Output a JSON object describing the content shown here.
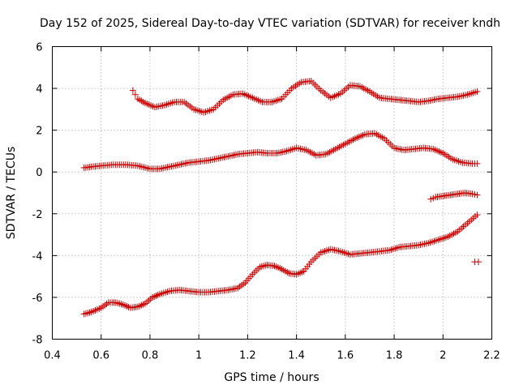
{
  "chart_data": {
    "type": "scatter",
    "title": "Day 152 of 2025, Sidereal Day-to-day VTEC variation (SDTVAR) for receiver kndh",
    "xlabel": "GPS time / hours",
    "ylabel": "SDTVAR / TECUs",
    "xlim": [
      0.4,
      2.2
    ],
    "ylim": [
      -8,
      6
    ],
    "xticks": [
      0.4,
      0.6,
      0.8,
      1.0,
      1.2,
      1.4,
      1.6,
      1.8,
      2.0,
      2.2
    ],
    "xtick_labels": [
      "0.4",
      "0.6",
      "0.8",
      "1",
      "1.2",
      "1.4",
      "1.6",
      "1.8",
      "2",
      "2.2"
    ],
    "yticks": [
      -8,
      -6,
      -4,
      -2,
      0,
      2,
      4,
      6
    ],
    "ytick_labels": [
      "-8",
      "-6",
      "-4",
      "-2",
      "0",
      "2",
      "4",
      "6"
    ],
    "grid": true,
    "marker": "+",
    "color": "#cc0000",
    "series": [
      {
        "name": "upper arc",
        "x": [
          0.73,
          0.75,
          0.78,
          0.82,
          0.86,
          0.9,
          0.94,
          0.98,
          1.02,
          1.06,
          1.1,
          1.14,
          1.18,
          1.22,
          1.26,
          1.3,
          1.34,
          1.38,
          1.42,
          1.46,
          1.5,
          1.54,
          1.58,
          1.62,
          1.66,
          1.7,
          1.74,
          1.78,
          1.82,
          1.86,
          1.9,
          1.94,
          1.98,
          2.02,
          2.06,
          2.1,
          2.14
        ],
        "y": [
          3.9,
          3.5,
          3.3,
          3.1,
          3.2,
          3.35,
          3.35,
          3.0,
          2.85,
          3.0,
          3.45,
          3.7,
          3.75,
          3.55,
          3.35,
          3.35,
          3.5,
          4.0,
          4.3,
          4.35,
          3.9,
          3.55,
          3.75,
          4.15,
          4.1,
          3.85,
          3.55,
          3.5,
          3.45,
          3.4,
          3.35,
          3.4,
          3.5,
          3.55,
          3.6,
          3.7,
          3.85
        ]
      },
      {
        "name": "middle arc",
        "x": [
          0.53,
          0.56,
          0.6,
          0.65,
          0.7,
          0.75,
          0.8,
          0.84,
          0.88,
          0.92,
          0.96,
          1.0,
          1.04,
          1.08,
          1.12,
          1.16,
          1.2,
          1.24,
          1.28,
          1.32,
          1.36,
          1.4,
          1.44,
          1.48,
          1.52,
          1.56,
          1.6,
          1.64,
          1.68,
          1.72,
          1.76,
          1.8,
          1.84,
          1.88,
          1.92,
          1.96,
          2.0,
          2.04,
          2.08,
          2.12,
          2.14
        ],
        "y": [
          0.2,
          0.25,
          0.3,
          0.35,
          0.35,
          0.3,
          0.15,
          0.15,
          0.25,
          0.35,
          0.45,
          0.5,
          0.55,
          0.65,
          0.75,
          0.85,
          0.9,
          0.95,
          0.9,
          0.9,
          1.0,
          1.15,
          1.05,
          0.8,
          0.85,
          1.1,
          1.35,
          1.6,
          1.8,
          1.85,
          1.6,
          1.15,
          1.05,
          1.1,
          1.15,
          1.1,
          0.9,
          0.6,
          0.45,
          0.4,
          0.4
        ]
      },
      {
        "name": "short segment",
        "x": [
          1.95,
          1.97,
          2.0,
          2.03,
          2.06,
          2.09,
          2.12,
          2.14
        ],
        "y": [
          -1.3,
          -1.2,
          -1.15,
          -1.1,
          -1.05,
          -1.0,
          -1.05,
          -1.1
        ]
      },
      {
        "name": "lower arc",
        "x": [
          0.53,
          0.56,
          0.6,
          0.63,
          0.66,
          0.69,
          0.72,
          0.75,
          0.78,
          0.81,
          0.84,
          0.88,
          0.92,
          0.96,
          1.0,
          1.04,
          1.08,
          1.12,
          1.16,
          1.19,
          1.22,
          1.25,
          1.28,
          1.31,
          1.34,
          1.37,
          1.4,
          1.43,
          1.46,
          1.5,
          1.54,
          1.58,
          1.62,
          1.66,
          1.7,
          1.74,
          1.78,
          1.82,
          1.86,
          1.9,
          1.94,
          1.98,
          2.02,
          2.06,
          2.1,
          2.14
        ],
        "y": [
          -6.8,
          -6.7,
          -6.5,
          -6.25,
          -6.25,
          -6.35,
          -6.5,
          -6.45,
          -6.3,
          -6.0,
          -5.85,
          -5.7,
          -5.65,
          -5.7,
          -5.75,
          -5.75,
          -5.7,
          -5.65,
          -5.55,
          -5.3,
          -4.9,
          -4.55,
          -4.45,
          -4.5,
          -4.65,
          -4.85,
          -4.9,
          -4.75,
          -4.3,
          -3.85,
          -3.7,
          -3.8,
          -3.95,
          -3.9,
          -3.85,
          -3.8,
          -3.75,
          -3.6,
          -3.55,
          -3.5,
          -3.4,
          -3.25,
          -3.1,
          -2.85,
          -2.45,
          -2.05
        ]
      },
      {
        "name": "isolated points",
        "x": [
          2.13,
          2.145
        ],
        "y": [
          -4.3,
          -4.3
        ]
      }
    ]
  }
}
